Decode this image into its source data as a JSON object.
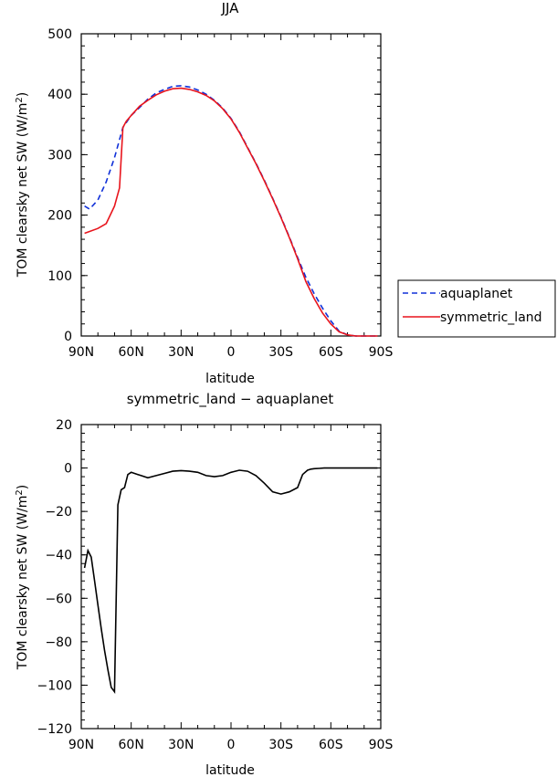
{
  "chart_data": [
    {
      "type": "line",
      "title": "JJA",
      "xlabel": "latitude",
      "ylabel": "TOM clearsky net SW (W/m²)",
      "ylabel_main": "TOM clearsky net SW (W/m",
      "ylabel_sup": "2",
      "ylabel_close": ")",
      "xlim": [
        90,
        -90
      ],
      "ylim": [
        0,
        500
      ],
      "x_ticks": [
        90,
        60,
        30,
        0,
        -30,
        -60,
        -90
      ],
      "x_tick_labels": [
        "90N",
        "60N",
        "30N",
        "0",
        "30S",
        "60S",
        "90S"
      ],
      "y_ticks": [
        0,
        100,
        200,
        300,
        400,
        500
      ],
      "y_tick_labels": [
        "0",
        "100",
        "200",
        "300",
        "400",
        "500"
      ],
      "legend_position": "right",
      "series": [
        {
          "name": "aquaplanet",
          "color": "#1030d8",
          "dash": true,
          "x": [
            88,
            85,
            80,
            75,
            70,
            65,
            60,
            55,
            50,
            45,
            40,
            35,
            30,
            25,
            20,
            15,
            10,
            5,
            0,
            -5,
            -10,
            -15,
            -20,
            -25,
            -30,
            -35,
            -40,
            -45,
            -50,
            -55,
            -60,
            -65,
            -70,
            -75,
            -80,
            -85,
            -88
          ],
          "y": [
            215,
            210,
            225,
            255,
            295,
            345,
            365,
            378,
            392,
            402,
            408,
            413,
            414,
            412,
            407,
            400,
            390,
            377,
            360,
            338,
            312,
            286,
            258,
            228,
            197,
            164,
            130,
            97,
            70,
            46,
            25,
            8,
            2,
            0,
            0,
            0,
            0
          ]
        },
        {
          "name": "symmetric_land",
          "color": "#e8141c",
          "dash": false,
          "x": [
            88,
            80,
            75,
            70,
            67,
            65,
            63,
            60,
            55,
            50,
            45,
            40,
            35,
            30,
            25,
            20,
            15,
            10,
            5,
            0,
            -5,
            -10,
            -15,
            -20,
            -25,
            -30,
            -35,
            -40,
            -45,
            -50,
            -55,
            -60,
            -65,
            -70,
            -75,
            -80,
            -85,
            -88
          ],
          "y": [
            170,
            178,
            186,
            215,
            245,
            345,
            355,
            365,
            380,
            390,
            399,
            405,
            409,
            410,
            408,
            404,
            398,
            389,
            376,
            359,
            337,
            311,
            285,
            257,
            227,
            196,
            163,
            128,
            90,
            62,
            38,
            20,
            7,
            2,
            0,
            0,
            0,
            0
          ]
        }
      ]
    },
    {
      "type": "line",
      "title": "symmetric_land − aquaplanet",
      "xlabel": "latitude",
      "ylabel": "TOM clearsky net SW (W/m²)",
      "ylabel_main": "TOM clearsky net SW (W/m",
      "ylabel_sup": "2",
      "ylabel_close": ")",
      "xlim": [
        90,
        -90
      ],
      "ylim": [
        -120,
        20
      ],
      "x_ticks": [
        90,
        60,
        30,
        0,
        -30,
        -60,
        -90
      ],
      "x_tick_labels": [
        "90N",
        "60N",
        "30N",
        "0",
        "30S",
        "60S",
        "90S"
      ],
      "y_ticks": [
        -120,
        -100,
        -80,
        -60,
        -40,
        -20,
        0,
        20
      ],
      "y_tick_labels": [
        "−120",
        "−100",
        "−80",
        "−60",
        "−40",
        "−20",
        "0",
        "20"
      ],
      "series": [
        {
          "name": "",
          "color": "#000000",
          "dash": false,
          "x": [
            88,
            86,
            84,
            82,
            80,
            78,
            76,
            74,
            72,
            70,
            68,
            66,
            64,
            62,
            60,
            58,
            56,
            54,
            50,
            45,
            40,
            35,
            30,
            25,
            20,
            15,
            10,
            5,
            0,
            -5,
            -10,
            -15,
            -20,
            -25,
            -30,
            -35,
            -40,
            -43,
            -46,
            -48,
            -50,
            -53,
            -56,
            -60,
            -63,
            -65,
            -67,
            -70,
            -75,
            -80,
            -85,
            -88
          ],
          "y": [
            -46,
            -38,
            -41,
            -52,
            -63,
            -74,
            -84,
            -93,
            -101,
            -103,
            -17,
            -10,
            -9,
            -3,
            -2,
            -2.5,
            -3,
            -3.5,
            -4.5,
            -3.5,
            -2.5,
            -1.5,
            -1.2,
            -1.5,
            -2,
            -3.5,
            -4,
            -3.5,
            -2,
            -1,
            -1.5,
            -3.5,
            -7,
            -11,
            -12,
            -11,
            -9,
            -3,
            -1,
            -0.5,
            -0.3,
            -0.2,
            0,
            0,
            0,
            0,
            0,
            0,
            0,
            0,
            0,
            0
          ]
        }
      ]
    }
  ]
}
